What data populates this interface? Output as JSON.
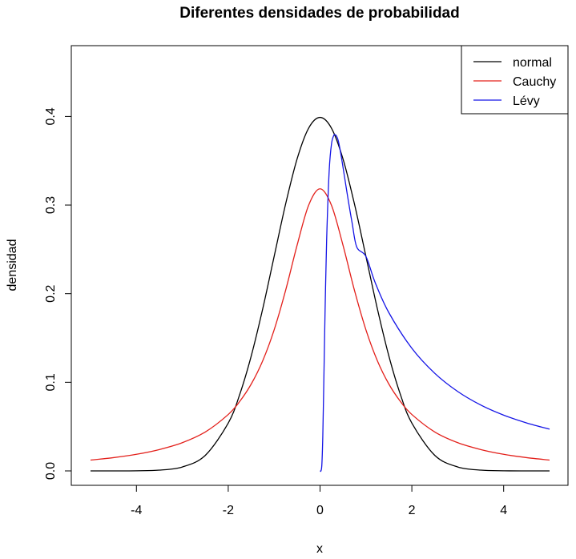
{
  "chart_data": {
    "type": "line",
    "title": "Diferentes densidades de probabilidad",
    "xlabel": "x",
    "ylabel": "densidad",
    "xlim": [
      -5,
      5
    ],
    "ylim": [
      0,
      0.46
    ],
    "x_ticks": [
      -4,
      -2,
      0,
      2,
      4
    ],
    "x_tick_labels": [
      "-4",
      "-2",
      "0",
      "2",
      "4"
    ],
    "y_ticks": [
      0.0,
      0.1,
      0.2,
      0.3,
      0.4
    ],
    "y_tick_labels": [
      "0.0",
      "0.1",
      "0.2",
      "0.3",
      "0.4"
    ],
    "grid": false,
    "legend_position": "top-right",
    "series": [
      {
        "name": "normal",
        "color": "#000000",
        "x": [
          -5,
          -4.5,
          -4,
          -3.5,
          -3,
          -2.5,
          -2,
          -1.75,
          -1.5,
          -1.25,
          -1,
          -0.75,
          -0.5,
          -0.25,
          0,
          0.25,
          0.5,
          0.75,
          1,
          1.25,
          1.5,
          1.75,
          2,
          2.5,
          3,
          3.5,
          4,
          4.5,
          5
        ],
        "y": [
          1.5e-06,
          1.6e-05,
          0.000134,
          0.000873,
          0.00443,
          0.01753,
          0.05399,
          0.08628,
          0.12952,
          0.18265,
          0.24197,
          0.30114,
          0.35207,
          0.38667,
          0.39894,
          0.38667,
          0.35207,
          0.30114,
          0.24197,
          0.18265,
          0.12952,
          0.08628,
          0.05399,
          0.01753,
          0.00443,
          0.000873,
          0.000134,
          1.6e-05,
          1.5e-06
        ]
      },
      {
        "name": "Cauchy",
        "color": "#e3201b",
        "x": [
          -5,
          -4.5,
          -4,
          -3.5,
          -3,
          -2.5,
          -2,
          -1.75,
          -1.5,
          -1.25,
          -1,
          -0.75,
          -0.5,
          -0.25,
          0,
          0.25,
          0.5,
          0.75,
          1,
          1.25,
          1.5,
          1.75,
          2,
          2.5,
          3,
          3.5,
          4,
          4.5,
          5
        ],
        "y": [
          0.01224,
          0.01497,
          0.01872,
          0.02411,
          0.03183,
          0.0439,
          0.06366,
          0.07841,
          0.09794,
          0.12419,
          0.15915,
          0.20372,
          0.25465,
          0.29959,
          0.31831,
          0.29959,
          0.25465,
          0.20372,
          0.15915,
          0.12419,
          0.09794,
          0.07841,
          0.06366,
          0.0439,
          0.03183,
          0.02411,
          0.01872,
          0.01497,
          0.01224
        ]
      },
      {
        "name": "Lévy",
        "color": "#1414e6",
        "x": [
          0,
          0.02,
          0.04,
          0.06,
          0.08,
          0.1,
          0.12,
          0.15,
          0.2,
          0.25,
          0.3,
          0.333,
          0.36,
          0.4,
          0.45,
          0.5,
          0.6,
          0.7,
          0.8,
          1,
          1.2,
          1.5,
          2,
          2.5,
          3,
          3.5,
          4,
          4.5,
          5
        ],
        "y": [
          0,
          3.93e-05,
          0.00741,
          0.03957,
          0.09437,
          0.15303,
          0.20777,
          0.27204,
          0.33941,
          0.36913,
          0.37857,
          0.37922,
          0.37778,
          0.37204,
          0.35859,
          0.34281,
          0.30994,
          0.27947,
          0.25262,
          0.24197,
          0.21263,
          0.17849,
          0.13837,
          0.11008,
          0.08958,
          0.07437,
          0.06295,
          0.05413,
          0.04709
        ]
      }
    ]
  }
}
